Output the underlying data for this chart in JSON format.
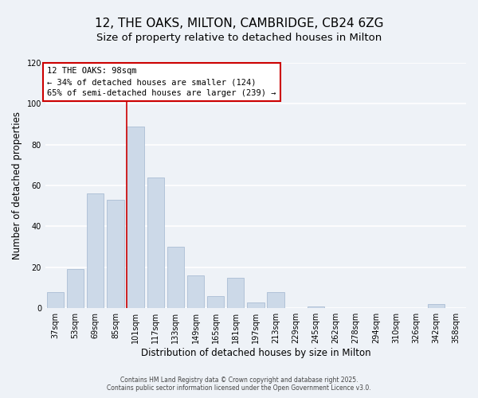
{
  "title": "12, THE OAKS, MILTON, CAMBRIDGE, CB24 6ZG",
  "subtitle": "Size of property relative to detached houses in Milton",
  "xlabel": "Distribution of detached houses by size in Milton",
  "ylabel": "Number of detached properties",
  "bar_color": "#ccd9e8",
  "bar_edge_color": "#aabdd4",
  "background_color": "#eef2f7",
  "grid_color": "#ffffff",
  "categories": [
    "37sqm",
    "53sqm",
    "69sqm",
    "85sqm",
    "101sqm",
    "117sqm",
    "133sqm",
    "149sqm",
    "165sqm",
    "181sqm",
    "197sqm",
    "213sqm",
    "229sqm",
    "245sqm",
    "262sqm",
    "278sqm",
    "294sqm",
    "310sqm",
    "326sqm",
    "342sqm",
    "358sqm"
  ],
  "values": [
    8,
    19,
    56,
    53,
    89,
    64,
    30,
    16,
    6,
    15,
    3,
    8,
    0,
    1,
    0,
    0,
    0,
    0,
    0,
    2,
    0
  ],
  "ylim": [
    0,
    120
  ],
  "yticks": [
    0,
    20,
    40,
    60,
    80,
    100,
    120
  ],
  "marker_bar_index": 4,
  "marker_line_color": "#cc0000",
  "annotation_line1": "12 THE OAKS: 98sqm",
  "annotation_line2": "← 34% of detached houses are smaller (124)",
  "annotation_line3": "65% of semi-detached houses are larger (239) →",
  "annotation_box_color": "#ffffff",
  "annotation_box_edge": "#cc0000",
  "footer1": "Contains HM Land Registry data © Crown copyright and database right 2025.",
  "footer2": "Contains public sector information licensed under the Open Government Licence v3.0.",
  "title_fontsize": 11,
  "subtitle_fontsize": 9.5,
  "tick_fontsize": 7,
  "axis_label_fontsize": 8.5,
  "annotation_fontsize": 7.5,
  "footer_fontsize": 5.5
}
